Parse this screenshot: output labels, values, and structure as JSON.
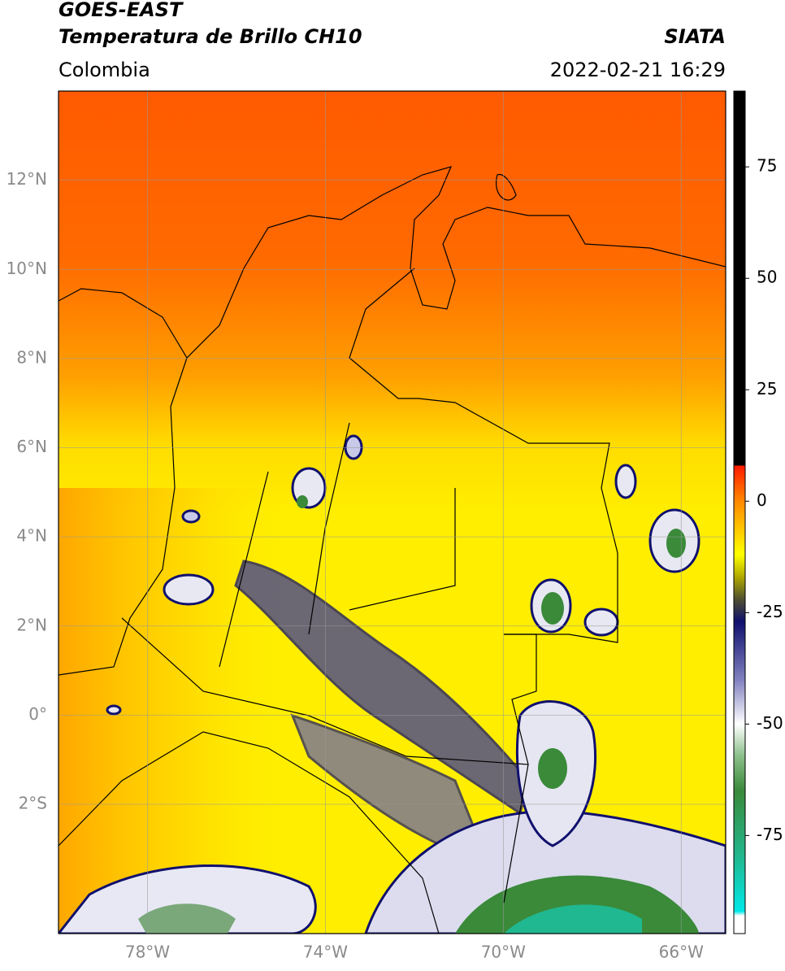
{
  "header": {
    "title": "GOES-EAST",
    "subtitle": "Temperatura de Brillo CH10",
    "region": "Colombia",
    "source": "SIATA",
    "datetime": "2022-02-21 16:29"
  },
  "map": {
    "xlim": [
      -80,
      -65
    ],
    "ylim": [
      -4.9,
      14
    ],
    "grid": true,
    "xticks": [
      {
        "value": -78,
        "label": "78°W"
      },
      {
        "value": -74,
        "label": "74°W"
      },
      {
        "value": -70,
        "label": "70°W"
      },
      {
        "value": -66,
        "label": "66°W"
      }
    ],
    "yticks": [
      {
        "value": 12,
        "label": "12°N"
      },
      {
        "value": 10,
        "label": "10°N"
      },
      {
        "value": 8,
        "label": "8°N"
      },
      {
        "value": 6,
        "label": "6°N"
      },
      {
        "value": 4,
        "label": "4°N"
      },
      {
        "value": 2,
        "label": "2°N"
      },
      {
        "value": 0,
        "label": "0°"
      },
      {
        "value": -2,
        "label": "2°S"
      }
    ]
  },
  "colorbar": {
    "lim": [
      -97,
      92
    ],
    "ticks": [
      75,
      50,
      25,
      0,
      -25,
      -50,
      -75
    ],
    "colormap": [
      {
        "value": 92,
        "color": "#000000"
      },
      {
        "value": 8,
        "color": "#000000"
      },
      {
        "value": 8,
        "color": "#ff1a00"
      },
      {
        "value": 0,
        "color": "#ff8800"
      },
      {
        "value": -12,
        "color": "#ffff00"
      },
      {
        "value": -17,
        "color": "#b0a800"
      },
      {
        "value": -22,
        "color": "#505030"
      },
      {
        "value": -27,
        "color": "#10106e"
      },
      {
        "value": -40,
        "color": "#8080c0"
      },
      {
        "value": -50,
        "color": "#ffffff"
      },
      {
        "value": -57,
        "color": "#8cc08c"
      },
      {
        "value": -65,
        "color": "#3a8a3a"
      },
      {
        "value": -80,
        "color": "#20b890"
      },
      {
        "value": -92,
        "color": "#00e8e8"
      },
      {
        "value": -93,
        "color": "#ffffff"
      },
      {
        "value": -97,
        "color": "#ffffff"
      }
    ]
  }
}
